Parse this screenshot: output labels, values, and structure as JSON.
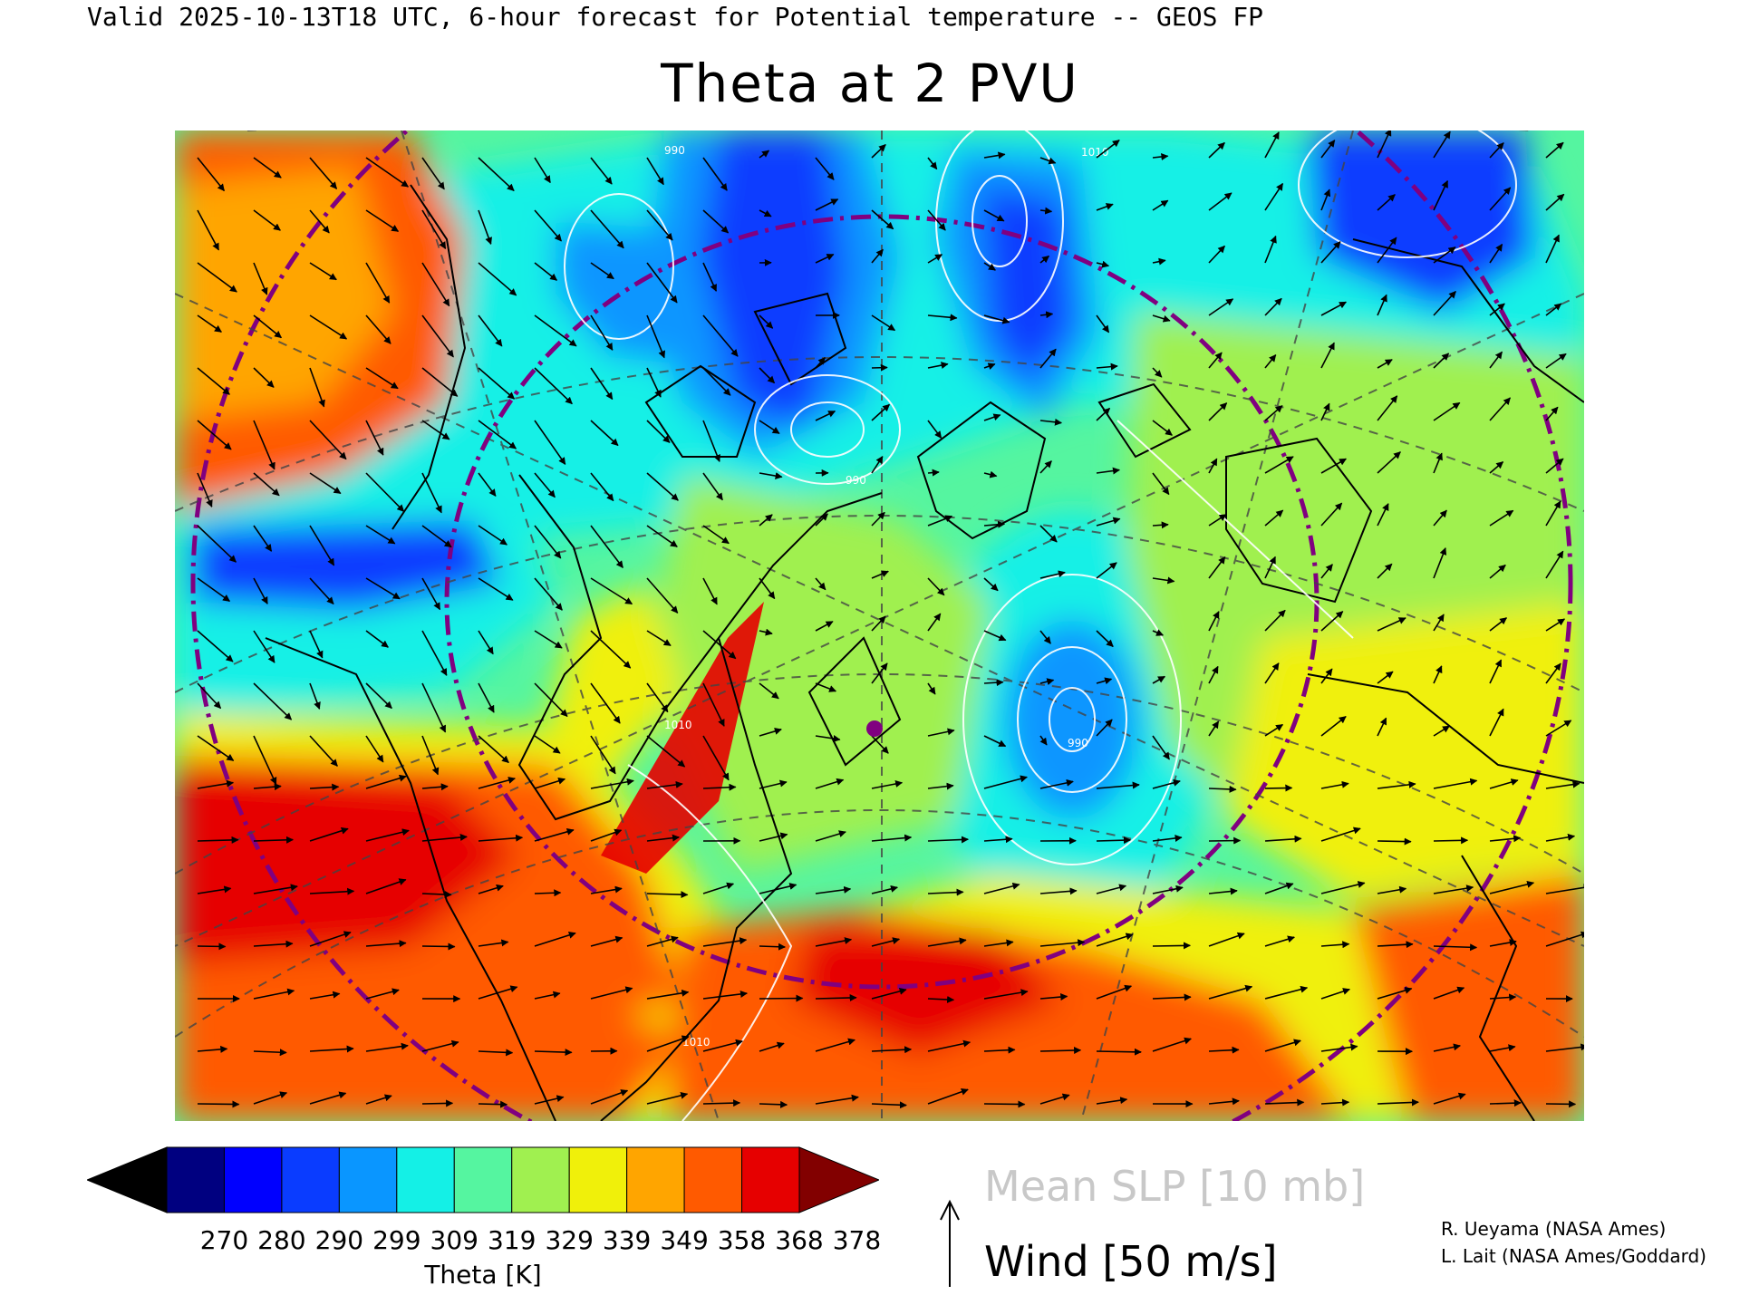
{
  "header": {
    "valid_line": "Valid 2025-10-13T18 UTC, 6-hour forecast for Potential temperature -- GEOS FP",
    "title": "Theta at 2 PVU"
  },
  "colorbar": {
    "label": "Theta [K]",
    "ticks": [
      "270",
      "280",
      "290",
      "299",
      "309",
      "319",
      "329",
      "339",
      "349",
      "358",
      "368",
      "378"
    ],
    "colors": [
      "#000000",
      "#000080",
      "#0000ff",
      "#0a3cff",
      "#0a96ff",
      "#14f0e6",
      "#55f5a0",
      "#a0f050",
      "#f0f00a",
      "#ffa500",
      "#ff5a00",
      "#e60000",
      "#820000"
    ]
  },
  "legend": {
    "slp": "Mean SLP [10 mb]",
    "wind": "Wind [50 m/s]"
  },
  "credits": {
    "line1": "R. Ueyama (NASA Ames)",
    "line2": "L. Lait (NASA Ames/Goddard)"
  },
  "map": {
    "contour_labels": [
      "1010",
      "990",
      "990",
      "1010",
      "1010",
      "990"
    ],
    "marker_color": "#800080"
  }
}
